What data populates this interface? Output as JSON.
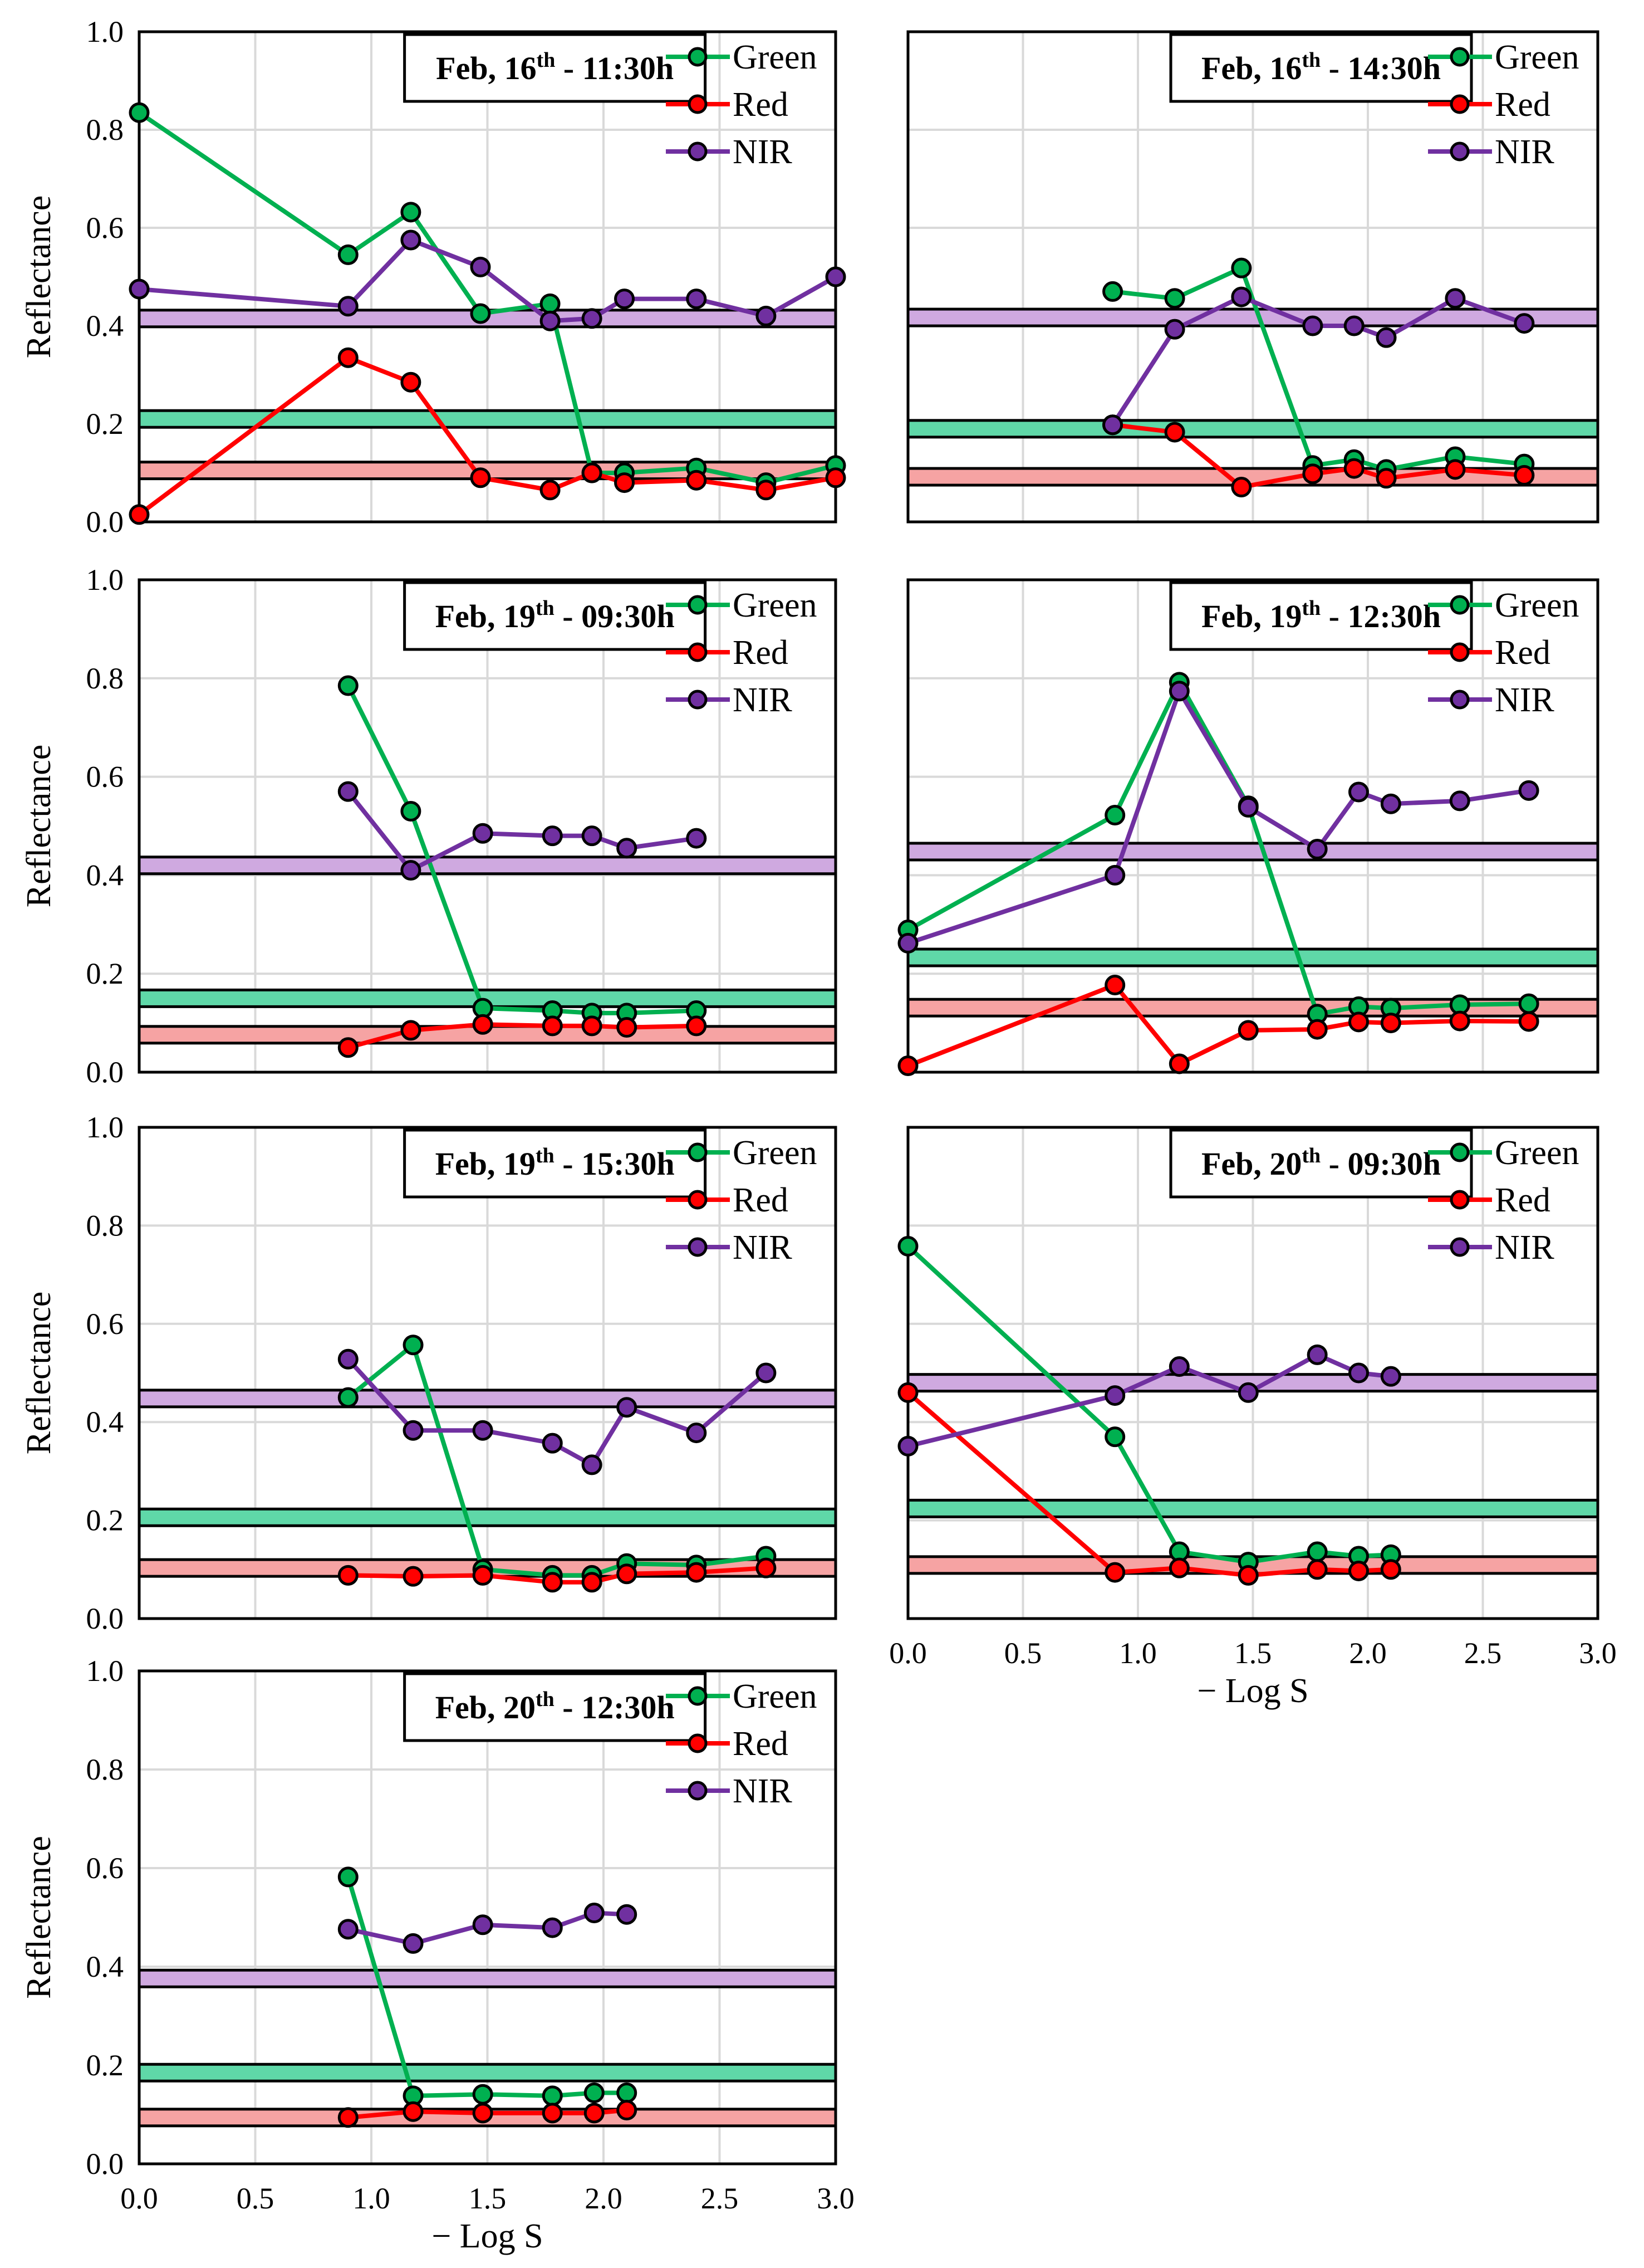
{
  "chart_data": {
    "type": "line",
    "ylabel": "Reflectance",
    "xlabel": "− Log S",
    "xlim": [
      0,
      3
    ],
    "ylim": [
      0,
      1
    ],
    "xticks": [
      "0.0",
      "0.5",
      "1.0",
      "1.5",
      "2.0",
      "2.5",
      "3.0"
    ],
    "yticks": [
      "0.0",
      "0.2",
      "0.4",
      "0.6",
      "0.8",
      "1.0"
    ],
    "grid": true,
    "legend": [
      "Green",
      "Red",
      "NIR"
    ],
    "legend_placement": "top-right",
    "colors": {
      "Green": "#00b050",
      "Red": "#ff0000",
      "NIR": "#7030a0",
      "band_Green": "#5fd8a8",
      "band_Red": "#f6a3a3",
      "band_NIR": "#cfa9e0"
    },
    "panels": [
      {
        "title_pre": "Feb, 16",
        "title_sup": "th",
        "title_post": " - 11:30h",
        "series": {
          "Green": [
            [
              0,
              0.835
            ],
            [
              0.9,
              0.545
            ],
            [
              1.17,
              0.632
            ],
            [
              1.47,
              0.425
            ],
            [
              1.77,
              0.445
            ],
            [
              1.95,
              0.1
            ],
            [
              2.09,
              0.1
            ],
            [
              2.4,
              0.11
            ],
            [
              2.7,
              0.08
            ],
            [
              3.0,
              0.115
            ]
          ],
          "Red": [
            [
              0,
              0.015
            ],
            [
              0.9,
              0.335
            ],
            [
              1.17,
              0.285
            ],
            [
              1.47,
              0.09
            ],
            [
              1.77,
              0.065
            ],
            [
              1.95,
              0.1
            ],
            [
              2.09,
              0.08
            ],
            [
              2.4,
              0.085
            ],
            [
              2.7,
              0.065
            ],
            [
              3.0,
              0.09
            ]
          ],
          "NIR": [
            [
              0,
              0.475
            ],
            [
              0.9,
              0.44
            ],
            [
              1.17,
              0.575
            ],
            [
              1.47,
              0.52
            ],
            [
              1.77,
              0.41
            ],
            [
              1.95,
              0.415
            ],
            [
              2.09,
              0.455
            ],
            [
              2.4,
              0.455
            ],
            [
              2.7,
              0.42
            ],
            [
              3.0,
              0.5
            ]
          ]
        },
        "bands": {
          "NIR": 0.415,
          "Green": 0.21,
          "Red": 0.105
        }
      },
      {
        "title_pre": "Feb, 16",
        "title_sup": "th",
        "title_post": " - 14:30h",
        "series": {
          "Green": [
            [
              0.89,
              0.47
            ],
            [
              1.16,
              0.456
            ],
            [
              1.45,
              0.518
            ],
            [
              1.76,
              0.115
            ],
            [
              1.94,
              0.127
            ],
            [
              2.08,
              0.107
            ],
            [
              2.38,
              0.133
            ],
            [
              2.68,
              0.118
            ]
          ],
          "Red": [
            [
              0.89,
              0.198
            ],
            [
              1.16,
              0.183
            ],
            [
              1.45,
              0.071
            ],
            [
              1.76,
              0.098
            ],
            [
              1.94,
              0.109
            ],
            [
              2.08,
              0.089
            ],
            [
              2.38,
              0.107
            ],
            [
              2.68,
              0.095
            ]
          ],
          "NIR": [
            [
              0.89,
              0.198
            ],
            [
              1.16,
              0.393
            ],
            [
              1.45,
              0.459
            ],
            [
              1.76,
              0.4
            ],
            [
              1.94,
              0.4
            ],
            [
              2.08,
              0.376
            ],
            [
              2.38,
              0.456
            ],
            [
              2.68,
              0.405
            ]
          ]
        },
        "bands": {
          "NIR": 0.417,
          "Green": 0.19,
          "Red": 0.092
        }
      },
      {
        "title_pre": "Feb, 19",
        "title_sup": "th",
        "title_post": " - 09:30h",
        "series": {
          "Green": [
            [
              0.9,
              0.785
            ],
            [
              1.17,
              0.53
            ],
            [
              1.48,
              0.13
            ],
            [
              1.78,
              0.125
            ],
            [
              1.95,
              0.12
            ],
            [
              2.1,
              0.12
            ],
            [
              2.4,
              0.125
            ]
          ],
          "Red": [
            [
              0.9,
              0.05
            ],
            [
              1.17,
              0.085
            ],
            [
              1.48,
              0.097
            ],
            [
              1.78,
              0.094
            ],
            [
              1.95,
              0.094
            ],
            [
              2.1,
              0.091
            ],
            [
              2.4,
              0.094
            ]
          ],
          "NIR": [
            [
              0.9,
              0.57
            ],
            [
              1.17,
              0.41
            ],
            [
              1.48,
              0.485
            ],
            [
              1.78,
              0.48
            ],
            [
              1.95,
              0.48
            ],
            [
              2.1,
              0.455
            ],
            [
              2.4,
              0.475
            ]
          ]
        },
        "bands": {
          "NIR": 0.42,
          "Green": 0.15,
          "Red": 0.076
        }
      },
      {
        "title_pre": "Feb, 19",
        "title_sup": "th",
        "title_post": " - 12:30h",
        "series": {
          "Green": [
            [
              0,
              0.289
            ],
            [
              0.9,
              0.522
            ],
            [
              1.18,
              0.792
            ],
            [
              1.48,
              0.541
            ],
            [
              1.78,
              0.118
            ],
            [
              1.96,
              0.133
            ],
            [
              2.1,
              0.13
            ],
            [
              2.4,
              0.137
            ],
            [
              2.7,
              0.139
            ]
          ],
          "Red": [
            [
              0,
              0.013
            ],
            [
              0.9,
              0.177
            ],
            [
              1.18,
              0.017
            ],
            [
              1.48,
              0.085
            ],
            [
              1.78,
              0.087
            ],
            [
              1.96,
              0.102
            ],
            [
              2.1,
              0.1
            ],
            [
              2.4,
              0.104
            ],
            [
              2.7,
              0.103
            ]
          ],
          "NIR": [
            [
              0,
              0.262
            ],
            [
              0.9,
              0.4
            ],
            [
              1.18,
              0.774
            ],
            [
              1.48,
              0.538
            ],
            [
              1.78,
              0.453
            ],
            [
              1.96,
              0.569
            ],
            [
              2.1,
              0.545
            ],
            [
              2.4,
              0.551
            ],
            [
              2.7,
              0.572
            ]
          ]
        },
        "bands": {
          "NIR": 0.448,
          "Green": 0.233,
          "Red": 0.131
        }
      },
      {
        "title_pre": "Feb, 19",
        "title_sup": "th",
        "title_post": " - 15:30h",
        "series": {
          "Green": [
            [
              0.9,
              0.45
            ],
            [
              1.18,
              0.557
            ],
            [
              1.48,
              0.1
            ],
            [
              1.78,
              0.088
            ],
            [
              1.95,
              0.088
            ],
            [
              2.1,
              0.112
            ],
            [
              2.4,
              0.109
            ],
            [
              2.7,
              0.127
            ]
          ],
          "Red": [
            [
              0.9,
              0.088
            ],
            [
              1.18,
              0.086
            ],
            [
              1.48,
              0.088
            ],
            [
              1.78,
              0.074
            ],
            [
              1.95,
              0.074
            ],
            [
              2.1,
              0.091
            ],
            [
              2.4,
              0.094
            ],
            [
              2.7,
              0.103
            ]
          ],
          "NIR": [
            [
              0.9,
              0.528
            ],
            [
              1.18,
              0.383
            ],
            [
              1.48,
              0.383
            ],
            [
              1.78,
              0.357
            ],
            [
              1.95,
              0.313
            ],
            [
              2.1,
              0.43
            ],
            [
              2.4,
              0.378
            ],
            [
              2.7,
              0.5
            ]
          ]
        },
        "bands": {
          "NIR": 0.448,
          "Green": 0.206,
          "Red": 0.103
        }
      },
      {
        "title_pre": "Feb, 20",
        "title_sup": "th",
        "title_post": " - 09:30h",
        "series": {
          "Green": [
            [
              0,
              0.758
            ],
            [
              0.9,
              0.37
            ],
            [
              1.18,
              0.136
            ],
            [
              1.48,
              0.115
            ],
            [
              1.78,
              0.136
            ],
            [
              1.96,
              0.127
            ],
            [
              2.1,
              0.13
            ]
          ],
          "Red": [
            [
              0,
              0.46
            ],
            [
              0.9,
              0.094
            ],
            [
              1.18,
              0.103
            ],
            [
              1.48,
              0.088
            ],
            [
              1.78,
              0.1
            ],
            [
              1.96,
              0.097
            ],
            [
              2.1,
              0.1
            ]
          ],
          "NIR": [
            [
              0,
              0.351
            ],
            [
              0.9,
              0.454
            ],
            [
              1.18,
              0.513
            ],
            [
              1.48,
              0.46
            ],
            [
              1.78,
              0.537
            ],
            [
              1.96,
              0.5
            ],
            [
              2.1,
              0.493
            ]
          ]
        },
        "bands": {
          "NIR": 0.48,
          "Green": 0.224,
          "Red": 0.109
        }
      },
      {
        "title_pre": "Feb, 20",
        "title_sup": "th",
        "title_post": " - 12:30h",
        "series": {
          "Green": [
            [
              0.9,
              0.582
            ],
            [
              1.18,
              0.138
            ],
            [
              1.48,
              0.141
            ],
            [
              1.78,
              0.138
            ],
            [
              1.96,
              0.144
            ],
            [
              2.1,
              0.144
            ]
          ],
          "Red": [
            [
              0.9,
              0.094
            ],
            [
              1.18,
              0.106
            ],
            [
              1.48,
              0.103
            ],
            [
              1.78,
              0.103
            ],
            [
              1.96,
              0.103
            ],
            [
              2.1,
              0.109
            ]
          ],
          "NIR": [
            [
              0.9,
              0.476
            ],
            [
              1.18,
              0.447
            ],
            [
              1.48,
              0.485
            ],
            [
              1.78,
              0.479
            ],
            [
              1.96,
              0.509
            ],
            [
              2.1,
              0.506
            ]
          ]
        },
        "bands": {
          "NIR": 0.376,
          "Green": 0.185,
          "Red": 0.094
        }
      }
    ]
  }
}
